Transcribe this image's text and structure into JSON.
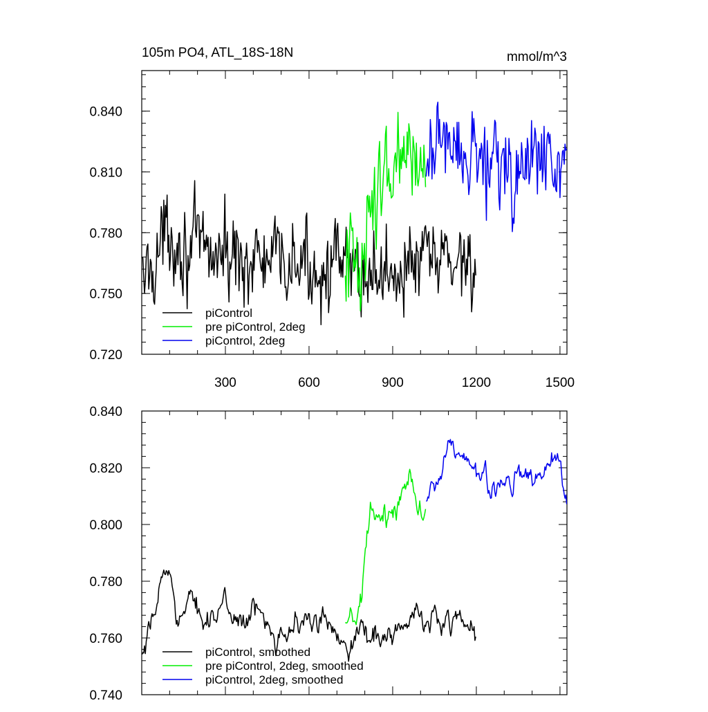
{
  "chart_data": [
    {
      "type": "line",
      "title": "105m PO4, ATL_18S-18N",
      "units": "mmol/m^3",
      "xlim": [
        0,
        1525
      ],
      "ylim": [
        0.72,
        0.86
      ],
      "xticks": [
        300,
        600,
        900,
        1200,
        1500
      ],
      "xtick_labels": [
        "300",
        "600",
        "900",
        "1200",
        "1500"
      ],
      "yticks": [
        0.72,
        0.75,
        0.78,
        0.81,
        0.84
      ],
      "ytick_labels": [
        "0.720",
        "0.750",
        "0.780",
        "0.810",
        "0.840"
      ],
      "grid": false,
      "legend_position": "bottom-left",
      "series": [
        {
          "name": "piControl",
          "color": "#000000",
          "x_start": 1,
          "x_end": 1200,
          "base_points": [
            [
              1,
              0.755
            ],
            [
              50,
              0.768
            ],
            [
              100,
              0.782
            ],
            [
              150,
              0.773
            ],
            [
              250,
              0.77
            ],
            [
              350,
              0.768
            ],
            [
              450,
              0.765
            ],
            [
              550,
              0.764
            ],
            [
              650,
              0.763
            ],
            [
              750,
              0.761
            ],
            [
              850,
              0.76
            ],
            [
              950,
              0.763
            ],
            [
              1050,
              0.766
            ],
            [
              1150,
              0.768
            ],
            [
              1200,
              0.766
            ]
          ],
          "noise": 0.01
        },
        {
          "name": "pre piControl, 2deg",
          "color": "#00ee00",
          "x_start": 730,
          "x_end": 1020,
          "base_points": [
            [
              730,
              0.765
            ],
            [
              790,
              0.77
            ],
            [
              830,
              0.795
            ],
            [
              880,
              0.804
            ],
            [
              930,
              0.812
            ],
            [
              970,
              0.818
            ],
            [
              1020,
              0.815
            ]
          ],
          "noise": 0.011
        },
        {
          "name": "piControl, 2deg",
          "color": "#0000ee",
          "x_start": 1020,
          "x_end": 1525,
          "base_points": [
            [
              1020,
              0.812
            ],
            [
              1100,
              0.824
            ],
            [
              1200,
              0.818
            ],
            [
              1300,
              0.814
            ],
            [
              1400,
              0.814
            ],
            [
              1525,
              0.812
            ]
          ],
          "noise": 0.011
        }
      ]
    },
    {
      "type": "line",
      "xlim": [
        0,
        1525
      ],
      "ylim": [
        0.74,
        0.84
      ],
      "xticks": [
        300,
        600,
        900,
        1200,
        1500
      ],
      "yticks": [
        0.74,
        0.76,
        0.78,
        0.8,
        0.82,
        0.84
      ],
      "ytick_labels": [
        "0.740",
        "0.760",
        "0.780",
        "0.800",
        "0.820",
        "0.840"
      ],
      "grid": false,
      "legend_position": "bottom-left",
      "series": [
        {
          "name": "piControl, smoothed",
          "color": "#000000",
          "x_start": 1,
          "x_end": 1200,
          "base_points": [
            [
              1,
              0.751
            ],
            [
              30,
              0.758
            ],
            [
              60,
              0.775
            ],
            [
              90,
              0.785
            ],
            [
              120,
              0.774
            ],
            [
              150,
              0.769
            ],
            [
              250,
              0.77
            ],
            [
              350,
              0.768
            ],
            [
              450,
              0.766
            ],
            [
              550,
              0.765
            ],
            [
              650,
              0.764
            ],
            [
              750,
              0.762
            ],
            [
              850,
              0.761
            ],
            [
              950,
              0.764
            ],
            [
              1050,
              0.767
            ],
            [
              1150,
              0.769
            ],
            [
              1200,
              0.76
            ]
          ],
          "noise": 0.004
        },
        {
          "name": "pre piControl, 2deg, smoothed",
          "color": "#00ee00",
          "x_start": 730,
          "x_end": 1020,
          "base_points": [
            [
              730,
              0.762
            ],
            [
              790,
              0.77
            ],
            [
              820,
              0.802
            ],
            [
              870,
              0.8
            ],
            [
              920,
              0.81
            ],
            [
              960,
              0.818
            ],
            [
              1020,
              0.807
            ]
          ],
          "noise": 0.004
        },
        {
          "name": "piControl, 2deg, smoothed",
          "color": "#0000ee",
          "x_start": 1020,
          "x_end": 1525,
          "base_points": [
            [
              1020,
              0.808
            ],
            [
              1100,
              0.826
            ],
            [
              1200,
              0.816
            ],
            [
              1300,
              0.814
            ],
            [
              1400,
              0.818
            ],
            [
              1500,
              0.818
            ],
            [
              1525,
              0.805
            ]
          ],
          "noise": 0.004
        }
      ]
    }
  ]
}
